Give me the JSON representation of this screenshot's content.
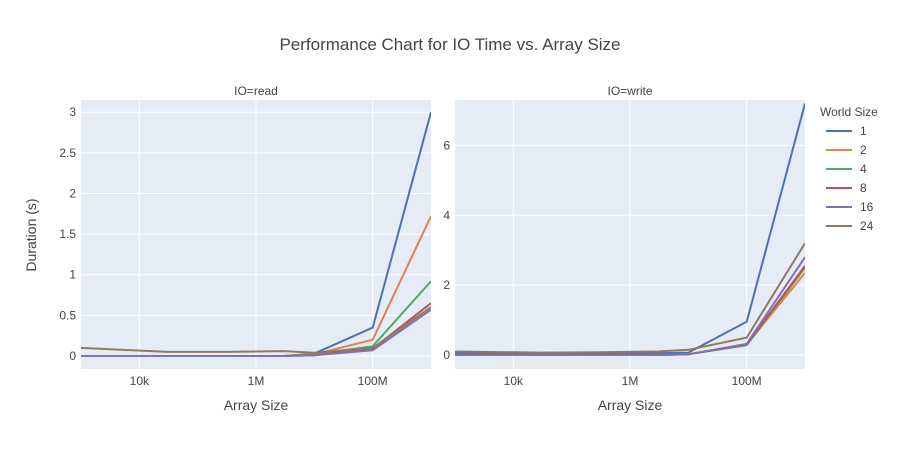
{
  "chart_data": {
    "type": "line",
    "title": "Performance Chart for IO Time vs. Array Size",
    "xlabel": "Array Size",
    "ylabel": "Duration (s)",
    "x_scale": "log",
    "x_tick_values": [
      10000,
      1000000,
      100000000
    ],
    "x_tick_labels": [
      "10k",
      "1M",
      "100M"
    ],
    "x": [
      1000,
      30000,
      300000,
      3000000,
      10000000,
      100000000,
      1000000000
    ],
    "legend": {
      "title": "World Size",
      "position": "right"
    },
    "grid": true,
    "background": "#e5ecf6",
    "series_colors": [
      "#4c72b0",
      "#dd8452",
      "#55a868",
      "#c44e52",
      "#8172b3",
      "#937860"
    ],
    "series_names": [
      "1",
      "2",
      "4",
      "8",
      "16",
      "24"
    ],
    "panels": [
      {
        "facet_label": "IO=read",
        "ylim": [
          -0.16,
          3.15
        ],
        "y_tick_values": [
          0,
          0.5,
          1,
          1.5,
          2,
          2.5,
          3
        ],
        "y_tick_labels": [
          "0",
          "0.5",
          "1",
          "1.5",
          "2",
          "2.5",
          "3"
        ],
        "series": [
          {
            "name": "1",
            "values": [
              0.0,
              0.0,
              0.0,
              0.0,
              0.03,
              0.35,
              3.0
            ]
          },
          {
            "name": "2",
            "values": [
              0.0,
              0.0,
              0.0,
              0.0,
              0.02,
              0.2,
              1.72
            ]
          },
          {
            "name": "4",
            "values": [
              0.0,
              0.0,
              0.0,
              0.0,
              0.02,
              0.12,
              0.92
            ]
          },
          {
            "name": "8",
            "values": [
              0.0,
              0.0,
              0.0,
              0.0,
              0.01,
              0.09,
              0.65
            ]
          },
          {
            "name": "16",
            "values": [
              0.0,
              0.0,
              0.0,
              0.0,
              0.01,
              0.07,
              0.57
            ]
          },
          {
            "name": "24",
            "values": [
              0.1,
              0.05,
              0.05,
              0.06,
              0.04,
              0.1,
              0.6
            ]
          }
        ]
      },
      {
        "facet_label": "IO=write",
        "ylim": [
          -0.4,
          7.3
        ],
        "y_tick_values": [
          0,
          2,
          4,
          6
        ],
        "y_tick_labels": [
          "0",
          "2",
          "4",
          "6"
        ],
        "series": [
          {
            "name": "1",
            "values": [
              0.05,
              0.03,
              0.03,
              0.05,
              0.07,
              0.95,
              7.2
            ]
          },
          {
            "name": "2",
            "values": [
              0.0,
              0.0,
              0.0,
              0.0,
              0.02,
              0.3,
              2.35
            ]
          },
          {
            "name": "4",
            "values": [
              0.0,
              0.0,
              0.0,
              0.0,
              0.02,
              0.28,
              2.5
            ]
          },
          {
            "name": "8",
            "values": [
              0.0,
              0.0,
              0.0,
              0.0,
              0.02,
              0.3,
              2.55
            ]
          },
          {
            "name": "16",
            "values": [
              0.0,
              0.0,
              0.0,
              0.0,
              0.02,
              0.32,
              2.8
            ]
          },
          {
            "name": "24",
            "values": [
              0.1,
              0.07,
              0.08,
              0.1,
              0.15,
              0.5,
              3.2
            ]
          }
        ]
      }
    ]
  }
}
